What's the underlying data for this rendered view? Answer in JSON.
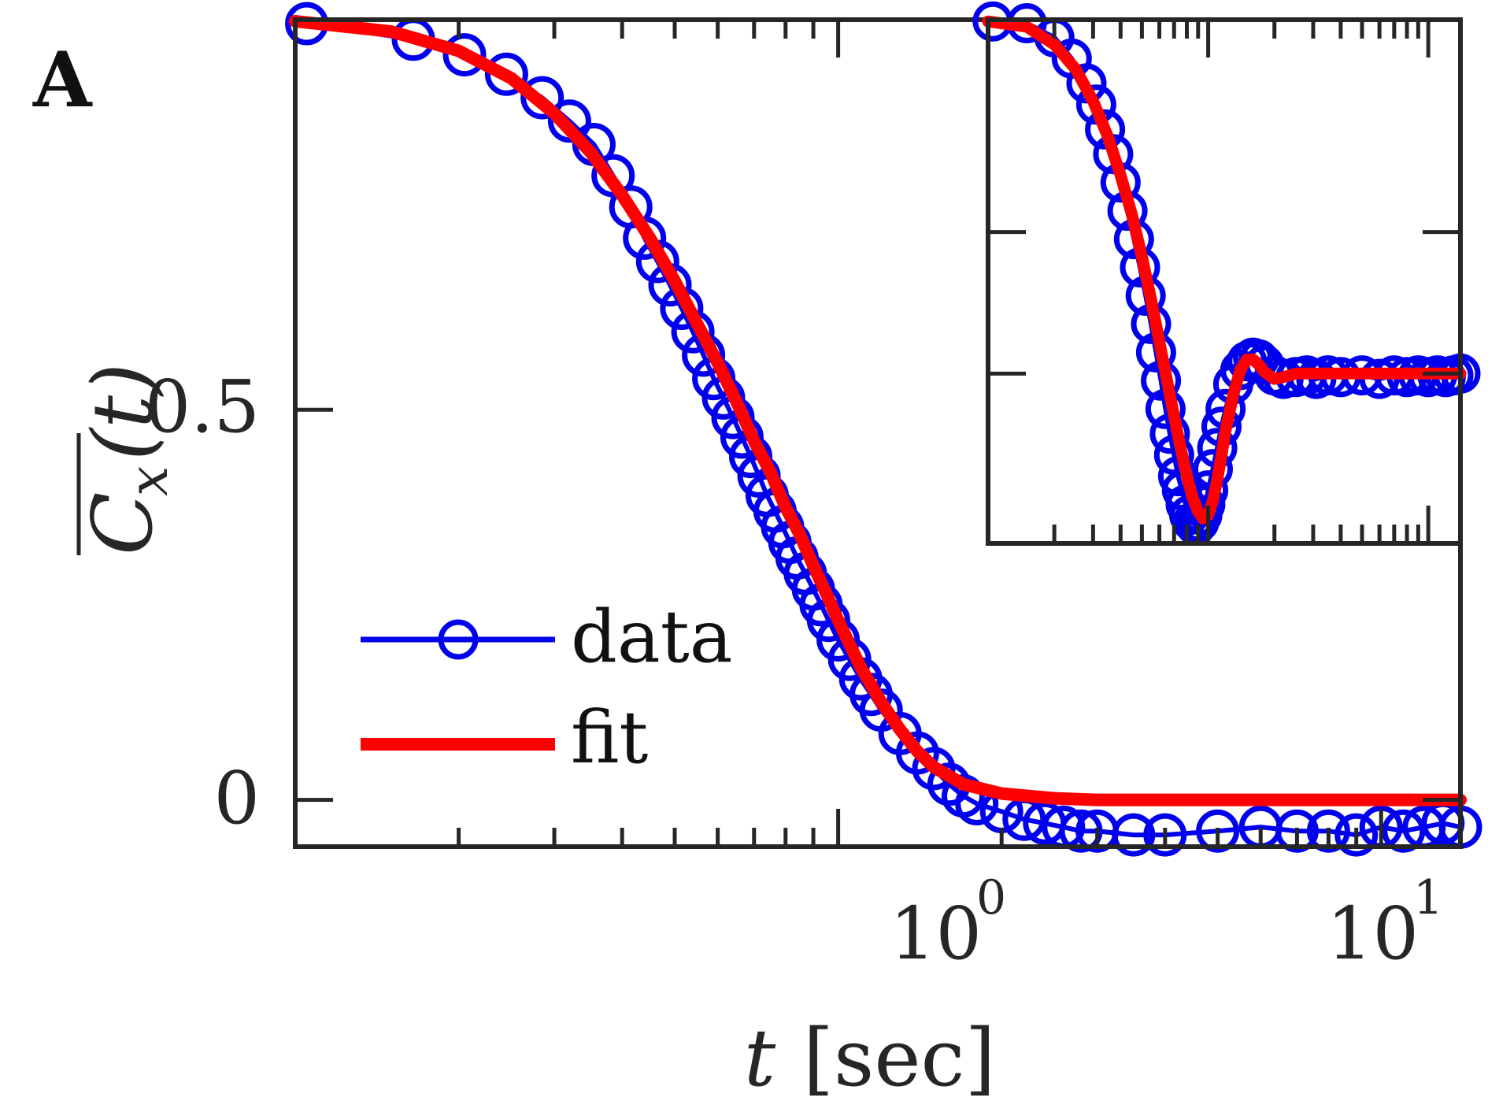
{
  "panel_label": "A",
  "colors": {
    "data": "#0000ee",
    "fit": "#ff0000",
    "axis": "#262626"
  },
  "chart_data": [
    {
      "id": "main",
      "type": "line",
      "xscale": "log",
      "xlim": [
        0.1,
        14
      ],
      "ylim": [
        -0.06,
        1.0
      ],
      "xlabel_var": "t",
      "xlabel_unit": "[sec]",
      "ylabel_main": "C",
      "ylabel_sub": "x",
      "ylabel_arg": "(t)",
      "xticks": [
        {
          "base": "10",
          "exp": "0",
          "value": 1
        },
        {
          "base": "10",
          "exp": "1",
          "value": 10
        }
      ],
      "yticks": [
        {
          "label": "0.5",
          "value": 0.5
        },
        {
          "label": "0",
          "value": 0
        }
      ],
      "series": [
        {
          "name": "data",
          "style": "circles",
          "x": [
            0.105,
            0.165,
            0.205,
            0.245,
            0.285,
            0.32,
            0.355,
            0.385,
            0.415,
            0.44,
            0.465,
            0.49,
            0.515,
            0.54,
            0.565,
            0.59,
            0.615,
            0.64,
            0.665,
            0.69,
            0.715,
            0.74,
            0.765,
            0.79,
            0.815,
            0.84,
            0.87,
            0.9,
            0.93,
            0.96,
            1.0,
            1.05,
            1.1,
            1.15,
            1.2,
            1.3,
            1.4,
            1.5,
            1.6,
            1.7,
            1.8,
            2.0,
            2.2,
            2.4,
            2.6,
            2.8,
            3.0,
            3.5,
            4.0,
            5.0,
            6.0,
            7.0,
            8.0,
            9.0,
            10.0,
            11.0,
            12.0,
            13.0,
            14.0
          ],
          "y": [
            0.995,
            0.975,
            0.955,
            0.93,
            0.9,
            0.87,
            0.84,
            0.8,
            0.76,
            0.72,
            0.69,
            0.66,
            0.63,
            0.6,
            0.57,
            0.54,
            0.515,
            0.49,
            0.465,
            0.44,
            0.415,
            0.39,
            0.37,
            0.35,
            0.33,
            0.31,
            0.29,
            0.27,
            0.25,
            0.23,
            0.205,
            0.18,
            0.155,
            0.135,
            0.115,
            0.085,
            0.06,
            0.04,
            0.02,
            0.005,
            -0.005,
            -0.015,
            -0.025,
            -0.03,
            -0.035,
            -0.04,
            -0.04,
            -0.045,
            -0.045,
            -0.04,
            -0.035,
            -0.04,
            -0.04,
            -0.045,
            -0.035,
            -0.04,
            -0.035,
            -0.03,
            -0.035
          ]
        },
        {
          "name": "fit",
          "style": "line",
          "x": [
            0.1,
            0.15,
            0.2,
            0.25,
            0.3,
            0.35,
            0.4,
            0.45,
            0.5,
            0.55,
            0.6,
            0.65,
            0.7,
            0.75,
            0.8,
            0.85,
            0.9,
            0.95,
            1.0,
            1.1,
            1.2,
            1.3,
            1.4,
            1.5,
            1.7,
            2.0,
            2.5,
            3.0,
            4.0,
            6.0,
            10.0,
            14.0
          ],
          "y": [
            0.998,
            0.985,
            0.96,
            0.925,
            0.88,
            0.83,
            0.775,
            0.72,
            0.665,
            0.61,
            0.56,
            0.51,
            0.46,
            0.42,
            0.375,
            0.34,
            0.3,
            0.265,
            0.23,
            0.17,
            0.125,
            0.09,
            0.062,
            0.042,
            0.02,
            0.008,
            0.002,
            0.0,
            0.0,
            0.0,
            0.0,
            0.0
          ]
        }
      ],
      "legend": {
        "position": "lower-left",
        "entries": [
          {
            "label": "data",
            "series": "data"
          },
          {
            "label": "fit",
            "series": "fit"
          }
        ]
      }
    },
    {
      "id": "inset",
      "type": "line",
      "xscale": "log",
      "xlim": [
        0.1,
        14
      ],
      "ylim": [
        -0.48,
        1.0
      ],
      "yticks_values": [
        0.4,
        0.0
      ],
      "series": [
        {
          "name": "data",
          "style": "circles",
          "x": [
            0.105,
            0.15,
            0.2,
            0.24,
            0.28,
            0.31,
            0.34,
            0.37,
            0.4,
            0.43,
            0.46,
            0.49,
            0.52,
            0.55,
            0.58,
            0.61,
            0.64,
            0.67,
            0.7,
            0.73,
            0.76,
            0.79,
            0.82,
            0.85,
            0.88,
            0.91,
            0.94,
            0.97,
            1.0,
            1.05,
            1.1,
            1.15,
            1.2,
            1.3,
            1.4,
            1.5,
            1.6,
            1.7,
            1.8,
            2.0,
            2.2,
            2.5,
            2.8,
            3.1,
            3.5,
            4.0,
            5.0,
            6.0,
            7.0,
            8.0,
            9.0,
            10.0,
            11.0,
            12.0,
            13.0,
            14.0
          ],
          "y": [
            0.995,
            0.99,
            0.95,
            0.89,
            0.82,
            0.76,
            0.69,
            0.62,
            0.54,
            0.46,
            0.38,
            0.3,
            0.22,
            0.14,
            0.06,
            -0.02,
            -0.1,
            -0.17,
            -0.23,
            -0.29,
            -0.33,
            -0.37,
            -0.4,
            -0.42,
            -0.43,
            -0.42,
            -0.4,
            -0.37,
            -0.33,
            -0.27,
            -0.21,
            -0.15,
            -0.1,
            -0.03,
            0.01,
            0.035,
            0.045,
            0.04,
            0.025,
            -0.005,
            -0.015,
            -0.01,
            -0.005,
            -0.015,
            -0.005,
            -0.01,
            -0.005,
            -0.015,
            -0.005,
            -0.01,
            -0.005,
            -0.01,
            -0.005,
            -0.01,
            -0.005,
            0.0
          ]
        },
        {
          "name": "fit",
          "style": "line",
          "x": [
            0.1,
            0.15,
            0.2,
            0.25,
            0.3,
            0.35,
            0.4,
            0.45,
            0.5,
            0.55,
            0.6,
            0.65,
            0.7,
            0.75,
            0.8,
            0.85,
            0.9,
            0.95,
            1.0,
            1.05,
            1.1,
            1.15,
            1.2,
            1.3,
            1.4,
            1.5,
            1.6,
            1.7,
            1.8,
            2.0,
            2.2,
            2.5,
            3.0,
            4.0,
            6.0,
            10.0,
            14.0
          ],
          "y": [
            0.995,
            0.98,
            0.93,
            0.86,
            0.77,
            0.67,
            0.56,
            0.45,
            0.33,
            0.21,
            0.09,
            -0.02,
            -0.12,
            -0.21,
            -0.29,
            -0.35,
            -0.39,
            -0.41,
            -0.4,
            -0.36,
            -0.3,
            -0.23,
            -0.16,
            -0.06,
            0.01,
            0.04,
            0.04,
            0.025,
            0.005,
            -0.015,
            -0.01,
            0.0,
            0.0,
            0.0,
            0.0,
            0.0,
            0.0
          ]
        }
      ]
    }
  ]
}
